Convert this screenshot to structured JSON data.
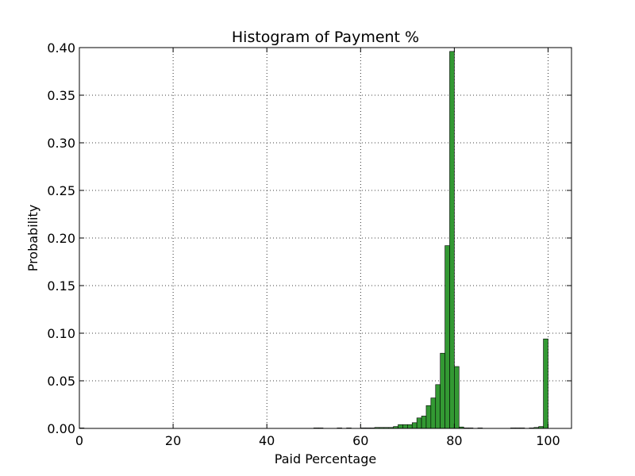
{
  "chart_data": {
    "type": "bar",
    "title": "Histogram of Payment %",
    "xlabel": "Paid Percentage",
    "ylabel": "Probability",
    "xlim": [
      0,
      105
    ],
    "ylim": [
      0,
      0.4
    ],
    "grid": true,
    "bar_color": "#339933",
    "x_ticks": [
      {
        "value": 0,
        "label": "0"
      },
      {
        "value": 20,
        "label": "20"
      },
      {
        "value": 40,
        "label": "40"
      },
      {
        "value": 60,
        "label": "60"
      },
      {
        "value": 80,
        "label": "80"
      },
      {
        "value": 100,
        "label": "100"
      }
    ],
    "y_ticks": [
      {
        "value": 0.0,
        "label": "0.00"
      },
      {
        "value": 0.05,
        "label": "0.05"
      },
      {
        "value": 0.1,
        "label": "0.10"
      },
      {
        "value": 0.15,
        "label": "0.15"
      },
      {
        "value": 0.2,
        "label": "0.20"
      },
      {
        "value": 0.25,
        "label": "0.25"
      },
      {
        "value": 0.3,
        "label": "0.30"
      },
      {
        "value": 0.35,
        "label": "0.35"
      },
      {
        "value": 0.4,
        "label": "0.40"
      }
    ],
    "bins": [
      {
        "x0": 0,
        "x1": 1,
        "value": 0.0005
      },
      {
        "x0": 50,
        "x1": 51,
        "value": 0.0005
      },
      {
        "x0": 51,
        "x1": 52,
        "value": 0.0005
      },
      {
        "x0": 55,
        "x1": 56,
        "value": 0.0005
      },
      {
        "x0": 57,
        "x1": 58,
        "value": 0.0005
      },
      {
        "x0": 60,
        "x1": 61,
        "value": 0.0005
      },
      {
        "x0": 61,
        "x1": 62,
        "value": 0.0005
      },
      {
        "x0": 62,
        "x1": 63,
        "value": 0.0005
      },
      {
        "x0": 63,
        "x1": 64,
        "value": 0.001
      },
      {
        "x0": 64,
        "x1": 65,
        "value": 0.001
      },
      {
        "x0": 65,
        "x1": 66,
        "value": 0.001
      },
      {
        "x0": 66,
        "x1": 67,
        "value": 0.001
      },
      {
        "x0": 67,
        "x1": 68,
        "value": 0.002
      },
      {
        "x0": 68,
        "x1": 69,
        "value": 0.004
      },
      {
        "x0": 69,
        "x1": 70,
        "value": 0.004
      },
      {
        "x0": 70,
        "x1": 71,
        "value": 0.004
      },
      {
        "x0": 71,
        "x1": 72,
        "value": 0.006
      },
      {
        "x0": 72,
        "x1": 73,
        "value": 0.011
      },
      {
        "x0": 73,
        "x1": 74,
        "value": 0.013
      },
      {
        "x0": 74,
        "x1": 75,
        "value": 0.024
      },
      {
        "x0": 75,
        "x1": 76,
        "value": 0.032
      },
      {
        "x0": 76,
        "x1": 77,
        "value": 0.046
      },
      {
        "x0": 77,
        "x1": 78,
        "value": 0.079
      },
      {
        "x0": 78,
        "x1": 79,
        "value": 0.192
      },
      {
        "x0": 79,
        "x1": 80,
        "value": 0.396
      },
      {
        "x0": 80,
        "x1": 81,
        "value": 0.065
      },
      {
        "x0": 81,
        "x1": 82,
        "value": 0.0015
      },
      {
        "x0": 82,
        "x1": 83,
        "value": 0.0005
      },
      {
        "x0": 83,
        "x1": 84,
        "value": 0.0005
      },
      {
        "x0": 85,
        "x1": 86,
        "value": 0.0005
      },
      {
        "x0": 92,
        "x1": 93,
        "value": 0.0005
      },
      {
        "x0": 93,
        "x1": 94,
        "value": 0.0005
      },
      {
        "x0": 94,
        "x1": 95,
        "value": 0.0005
      },
      {
        "x0": 96,
        "x1": 97,
        "value": 0.0005
      },
      {
        "x0": 97,
        "x1": 98,
        "value": 0.001
      },
      {
        "x0": 98,
        "x1": 99,
        "value": 0.002
      },
      {
        "x0": 99,
        "x1": 100,
        "value": 0.094
      }
    ]
  }
}
